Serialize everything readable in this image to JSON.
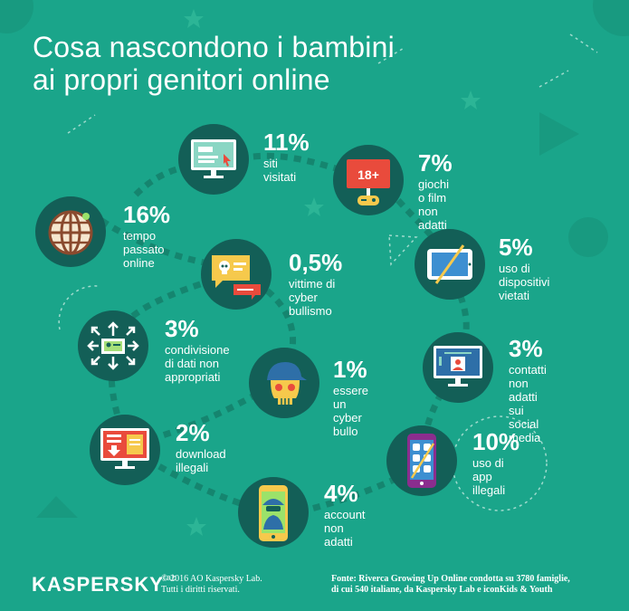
{
  "title": {
    "line1": "Cosa nascondono i bambini",
    "line2": "ai propri genitori online"
  },
  "items": [
    {
      "pct": "11%",
      "label": "siti\nvisitati",
      "icon": "monitor-website-icon"
    },
    {
      "pct": "7%",
      "label": "giochi o film\nnon adatti",
      "icon": "adult-content-screen-icon"
    },
    {
      "pct": "16%",
      "label": "tempo passato\nonline",
      "icon": "globe-icon"
    },
    {
      "pct": "5%",
      "label": "uso di dispositivi\nvietati",
      "icon": "forbidden-tablet-icon"
    },
    {
      "pct": "0,5%",
      "label": "vittime di\ncyber bullismo",
      "icon": "chat-bubble-skull-icon"
    },
    {
      "pct": "3%",
      "label": "condivisione\ndi dati non\nappropriati",
      "icon": "data-sharing-icon"
    },
    {
      "pct": "1%",
      "label": "essere un\ncyber bullo",
      "icon": "bully-skull-icon"
    },
    {
      "pct": "3%",
      "label": "contatti non\nadatti sui\nsocial media",
      "icon": "social-profile-monitor-icon"
    },
    {
      "pct": "2%",
      "label": "download\nillegali",
      "icon": "download-monitor-icon"
    },
    {
      "pct": "10%",
      "label": "uso di app\nillegali",
      "icon": "smartphone-apps-icon"
    },
    {
      "pct": "4%",
      "label": "account\nnon adatti",
      "icon": "spy-phone-icon"
    }
  ],
  "footer": {
    "logo": "KASPERSKY",
    "logo_suffix": "lab",
    "copyright": "© 2016 AO Kaspersky Lab.\nTutti i diritti riservati.",
    "source": "Fonte: Riverca Growing Up Online condotta su 3780 famiglie,\ndi cui 540 italiane, da Kaspersky Lab e iconKids & Youth"
  },
  "colors": {
    "background": "#1aa58a",
    "circle": "#135f57",
    "path": "#15856f",
    "accent_red": "#e94b3c",
    "accent_yellow": "#f6c94c"
  }
}
